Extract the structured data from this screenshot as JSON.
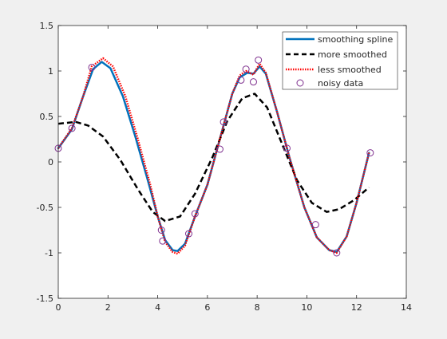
{
  "chart_data": {
    "type": "line",
    "xlim": [
      0,
      14
    ],
    "ylim": [
      -1.5,
      1.5
    ],
    "x_ticks": [
      "0",
      "2",
      "4",
      "6",
      "8",
      "10",
      "12",
      "14"
    ],
    "y_ticks": [
      "-1.5",
      "-1",
      "-0.5",
      "0",
      "0.5",
      "1",
      "1.5"
    ],
    "grid": false,
    "legend_position": "top-right",
    "series": [
      {
        "name": "smoothing spline",
        "style": "solid",
        "color": "#0072bd",
        "x": [
          0,
          0.55,
          1.0,
          1.4,
          1.75,
          2.1,
          2.6,
          3.1,
          3.6,
          4.0,
          4.3,
          4.6,
          4.8,
          5.1,
          5.5,
          6.0,
          6.6,
          7.0,
          7.3,
          7.6,
          7.85,
          8.1,
          8.35,
          8.8,
          9.3,
          9.9,
          10.4,
          10.9,
          11.2,
          11.6,
          12.0,
          12.5
        ],
        "y": [
          0.15,
          0.36,
          0.72,
          1.02,
          1.1,
          1.03,
          0.72,
          0.28,
          -0.2,
          -0.6,
          -0.86,
          -0.97,
          -0.98,
          -0.9,
          -0.6,
          -0.25,
          0.35,
          0.75,
          0.93,
          0.98,
          0.97,
          1.05,
          0.97,
          0.55,
          0.05,
          -0.5,
          -0.83,
          -0.97,
          -0.99,
          -0.82,
          -0.45,
          0.1
        ]
      },
      {
        "name": "more smoothed",
        "style": "dashed",
        "color": "#000000",
        "x": [
          0,
          0.7,
          1.2,
          1.8,
          2.5,
          3.2,
          3.8,
          4.3,
          4.9,
          5.5,
          6.2,
          6.8,
          7.4,
          7.9,
          8.4,
          9.0,
          9.6,
          10.2,
          10.8,
          11.3,
          11.9,
          12.5
        ],
        "y": [
          0.42,
          0.44,
          0.4,
          0.28,
          0.02,
          -0.3,
          -0.55,
          -0.65,
          -0.6,
          -0.35,
          0.05,
          0.45,
          0.7,
          0.75,
          0.6,
          0.2,
          -0.2,
          -0.45,
          -0.55,
          -0.52,
          -0.42,
          -0.28
        ]
      },
      {
        "name": "less smoothed",
        "style": "dotted",
        "color": "#ff0000",
        "x": [
          0,
          0.55,
          1.0,
          1.35,
          1.8,
          2.2,
          2.7,
          3.2,
          3.7,
          4.0,
          4.3,
          4.6,
          4.8,
          5.1,
          5.5,
          6.0,
          6.6,
          7.0,
          7.3,
          7.55,
          7.85,
          8.1,
          8.35,
          8.8,
          9.3,
          9.9,
          10.4,
          10.9,
          11.2,
          11.6,
          12.0,
          12.5
        ],
        "y": [
          0.15,
          0.37,
          0.72,
          1.05,
          1.14,
          1.05,
          0.72,
          0.25,
          -0.25,
          -0.6,
          -0.88,
          -0.99,
          -1.01,
          -0.92,
          -0.6,
          -0.25,
          0.35,
          0.75,
          0.95,
          1.0,
          0.96,
          1.08,
          0.98,
          0.55,
          0.05,
          -0.5,
          -0.83,
          -0.97,
          -1.0,
          -0.82,
          -0.45,
          0.1
        ]
      },
      {
        "name": "noisy data",
        "style": "markers",
        "color": "#7e2f8e",
        "x": [
          0,
          0.55,
          1.35,
          4.15,
          4.2,
          5.25,
          5.5,
          6.5,
          6.65,
          7.35,
          7.55,
          7.85,
          8.05,
          9.2,
          10.35,
          11.2,
          12.55
        ],
        "y": [
          0.15,
          0.37,
          1.04,
          -0.75,
          -0.87,
          -0.79,
          -0.57,
          0.14,
          0.44,
          0.9,
          1.02,
          0.88,
          1.12,
          0.15,
          -0.69,
          -1.0,
          0.1
        ]
      }
    ]
  }
}
